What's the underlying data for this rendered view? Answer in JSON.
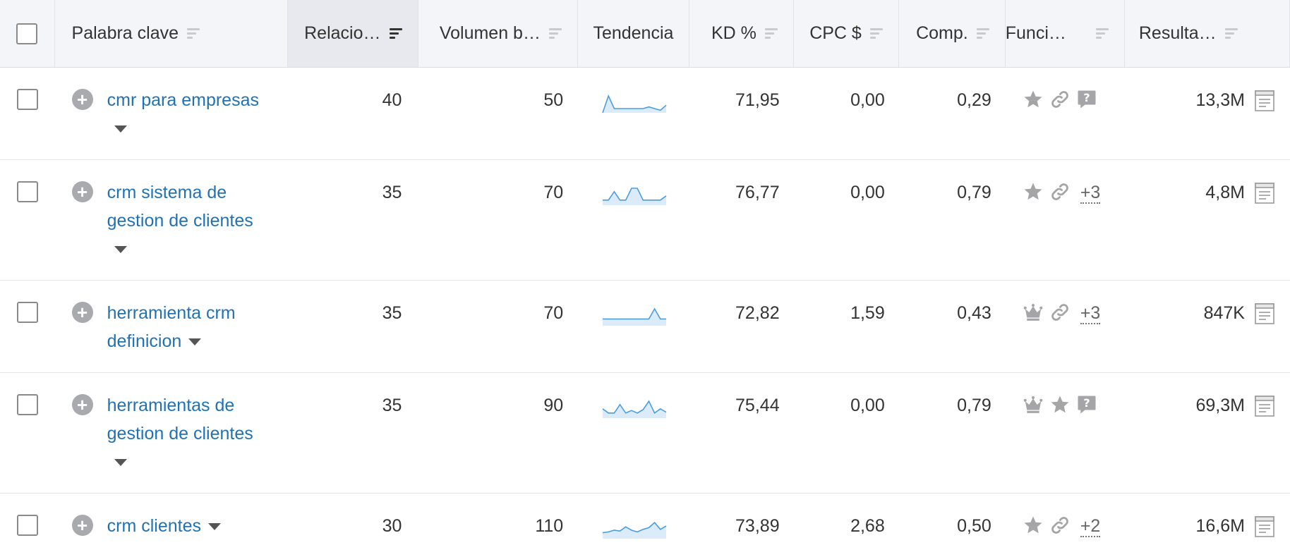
{
  "header": {
    "keyword": "Palabra clave",
    "relation": "Relacio…",
    "volume": "Volumen b…",
    "trend": "Tendencia",
    "kd": "KD %",
    "cpc": "CPC $",
    "comp": "Comp.",
    "functions": "Funci…",
    "results": "Resulta…"
  },
  "rows": [
    {
      "keyword": "cmr para empresas",
      "relation": "40",
      "volume": "50",
      "kd": "71,95",
      "cpc": "0,00",
      "comp": "0,29",
      "features": [
        "star-icon",
        "link-icon",
        "question-icon"
      ],
      "more": "",
      "results": "13,3M",
      "trend": [
        0.0,
        1.0,
        0.25,
        0.25,
        0.25,
        0.25,
        0.25,
        0.25,
        0.35,
        0.25,
        0.15,
        0.45
      ]
    },
    {
      "keyword": "crm sistema de gestion de clientes",
      "relation": "35",
      "volume": "70",
      "kd": "76,77",
      "cpc": "0,00",
      "comp": "0,79",
      "features": [
        "star-icon",
        "link-icon"
      ],
      "more": "+3",
      "results": "4,8M",
      "trend": [
        0.3,
        0.3,
        0.8,
        0.3,
        0.3,
        1.0,
        1.0,
        0.3,
        0.3,
        0.3,
        0.3,
        0.55
      ]
    },
    {
      "keyword": "herramienta crm definicion",
      "relation": "35",
      "volume": "70",
      "kd": "72,82",
      "cpc": "1,59",
      "comp": "0,43",
      "features": [
        "crown-icon",
        "link-icon"
      ],
      "more": "+3",
      "results": "847K",
      "trend": [
        0.4,
        0.4,
        0.4,
        0.4,
        0.4,
        0.4,
        0.4,
        0.4,
        0.4,
        1.0,
        0.4,
        0.4
      ]
    },
    {
      "keyword": "herramientas de gestion de clientes",
      "relation": "35",
      "volume": "90",
      "kd": "75,44",
      "cpc": "0,00",
      "comp": "0,79",
      "features": [
        "crown-icon",
        "star-icon",
        "question-icon"
      ],
      "more": "",
      "results": "69,3M",
      "trend": [
        0.55,
        0.3,
        0.3,
        0.8,
        0.3,
        0.45,
        0.3,
        0.5,
        1.0,
        0.3,
        0.55,
        0.35
      ]
    },
    {
      "keyword": "crm clientes",
      "relation": "30",
      "volume": "110",
      "kd": "73,89",
      "cpc": "2,68",
      "comp": "0,50",
      "features": [
        "star-icon",
        "link-icon"
      ],
      "more": "+2",
      "results": "16,6M",
      "trend": [
        0.35,
        0.4,
        0.5,
        0.45,
        0.7,
        0.5,
        0.4,
        0.55,
        0.65,
        0.95,
        0.55,
        0.75
      ]
    }
  ],
  "colors": {
    "link": "#2172b5",
    "trend_line": "#4a9de0",
    "trend_fill": "#dcebfa",
    "header_bg": "#f4f5f9",
    "icon_gray": "#a5a5a8"
  }
}
